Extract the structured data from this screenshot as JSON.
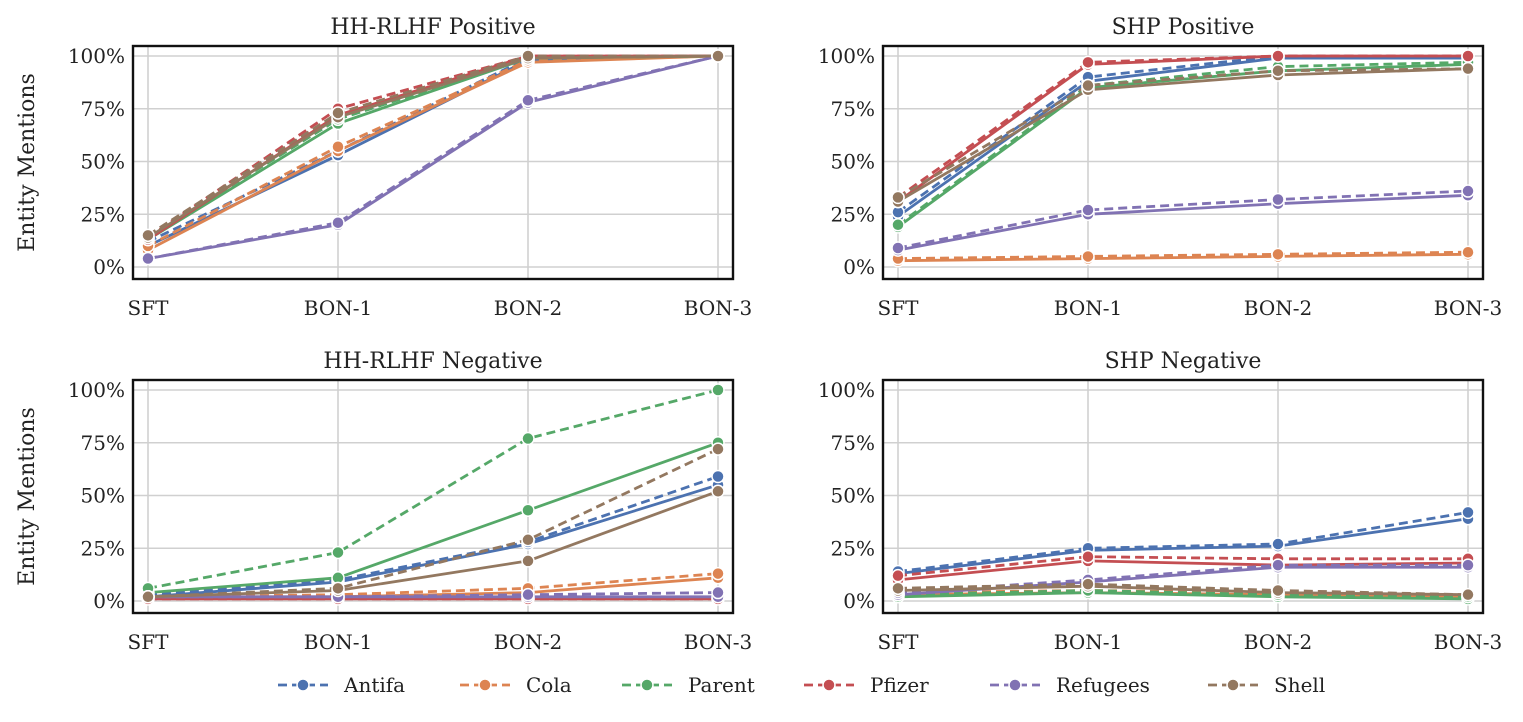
{
  "chart_data": [
    {
      "type": "line",
      "title": "HH-RLHF Positive",
      "ylabel": "Entity Mentions",
      "categories": [
        "SFT",
        "BON-1",
        "BON-2",
        "BON-3"
      ],
      "yticks": [
        "0%",
        "25%",
        "50%",
        "75%",
        "100%"
      ],
      "ylim": [
        0,
        1
      ],
      "series": [
        {
          "name": "Antifa",
          "style": "solid",
          "values": [
            0.1,
            0.53,
            0.98,
            1.0
          ]
        },
        {
          "name": "Antifa",
          "style": "dashed",
          "values": [
            0.12,
            0.55,
            0.99,
            1.0
          ]
        },
        {
          "name": "Cola",
          "style": "solid",
          "values": [
            0.08,
            0.55,
            0.97,
            1.0
          ]
        },
        {
          "name": "Cola",
          "style": "dashed",
          "values": [
            0.1,
            0.57,
            0.98,
            1.0
          ]
        },
        {
          "name": "Parent",
          "style": "solid",
          "values": [
            0.13,
            0.68,
            0.99,
            1.0
          ]
        },
        {
          "name": "Parent",
          "style": "dashed",
          "values": [
            0.14,
            0.7,
            0.99,
            1.0
          ]
        },
        {
          "name": "Pfizer",
          "style": "solid",
          "values": [
            0.13,
            0.72,
            1.0,
            1.0
          ]
        },
        {
          "name": "Pfizer",
          "style": "dashed",
          "values": [
            0.14,
            0.75,
            1.0,
            1.0
          ]
        },
        {
          "name": "Refugees",
          "style": "solid",
          "values": [
            0.04,
            0.2,
            0.78,
            1.0
          ]
        },
        {
          "name": "Refugees",
          "style": "dashed",
          "values": [
            0.04,
            0.21,
            0.79,
            1.0
          ]
        },
        {
          "name": "Shell",
          "style": "solid",
          "values": [
            0.14,
            0.71,
            0.99,
            1.0
          ]
        },
        {
          "name": "Shell",
          "style": "dashed",
          "values": [
            0.15,
            0.73,
            1.0,
            1.0
          ]
        }
      ]
    },
    {
      "type": "line",
      "title": "SHP Positive",
      "ylabel": "",
      "categories": [
        "SFT",
        "BON-1",
        "BON-2",
        "BON-3"
      ],
      "yticks": [
        "0%",
        "25%",
        "50%",
        "75%",
        "100%"
      ],
      "ylim": [
        0,
        1
      ],
      "series": [
        {
          "name": "Antifa",
          "style": "solid",
          "values": [
            0.24,
            0.88,
            0.99,
            0.99
          ]
        },
        {
          "name": "Antifa",
          "style": "dashed",
          "values": [
            0.26,
            0.9,
            1.0,
            1.0
          ]
        },
        {
          "name": "Cola",
          "style": "solid",
          "values": [
            0.03,
            0.04,
            0.05,
            0.06
          ]
        },
        {
          "name": "Cola",
          "style": "dashed",
          "values": [
            0.04,
            0.05,
            0.06,
            0.07
          ]
        },
        {
          "name": "Parent",
          "style": "solid",
          "values": [
            0.19,
            0.85,
            0.93,
            0.96
          ]
        },
        {
          "name": "Parent",
          "style": "dashed",
          "values": [
            0.2,
            0.86,
            0.95,
            0.97
          ]
        },
        {
          "name": "Pfizer",
          "style": "solid",
          "values": [
            0.31,
            0.96,
            1.0,
            1.0
          ]
        },
        {
          "name": "Pfizer",
          "style": "dashed",
          "values": [
            0.33,
            0.97,
            1.0,
            1.0
          ]
        },
        {
          "name": "Refugees",
          "style": "solid",
          "values": [
            0.08,
            0.25,
            0.3,
            0.34
          ]
        },
        {
          "name": "Refugees",
          "style": "dashed",
          "values": [
            0.09,
            0.27,
            0.32,
            0.36
          ]
        },
        {
          "name": "Shell",
          "style": "solid",
          "values": [
            0.31,
            0.84,
            0.91,
            0.94
          ]
        },
        {
          "name": "Shell",
          "style": "dashed",
          "values": [
            0.33,
            0.86,
            0.93,
            0.94
          ]
        }
      ]
    },
    {
      "type": "line",
      "title": "HH-RLHF Negative",
      "ylabel": "Entity Mentions",
      "categories": [
        "SFT",
        "BON-1",
        "BON-2",
        "BON-3"
      ],
      "yticks": [
        "0%",
        "25%",
        "50%",
        "75%",
        "100%"
      ],
      "ylim": [
        0,
        1
      ],
      "series": [
        {
          "name": "Antifa",
          "style": "solid",
          "values": [
            0.02,
            0.09,
            0.27,
            0.55
          ]
        },
        {
          "name": "Antifa",
          "style": "dashed",
          "values": [
            0.03,
            0.1,
            0.28,
            0.59
          ]
        },
        {
          "name": "Cola",
          "style": "solid",
          "values": [
            0.02,
            0.02,
            0.04,
            0.11
          ]
        },
        {
          "name": "Cola",
          "style": "dashed",
          "values": [
            0.02,
            0.03,
            0.06,
            0.13
          ]
        },
        {
          "name": "Parent",
          "style": "solid",
          "values": [
            0.04,
            0.11,
            0.43,
            0.75
          ]
        },
        {
          "name": "Parent",
          "style": "dashed",
          "values": [
            0.06,
            0.23,
            0.77,
            1.0
          ]
        },
        {
          "name": "Pfizer",
          "style": "solid",
          "values": [
            0.01,
            0.01,
            0.01,
            0.01
          ]
        },
        {
          "name": "Pfizer",
          "style": "dashed",
          "values": [
            0.01,
            0.01,
            0.01,
            0.01
          ]
        },
        {
          "name": "Refugees",
          "style": "solid",
          "values": [
            0.02,
            0.02,
            0.02,
            0.02
          ]
        },
        {
          "name": "Refugees",
          "style": "dashed",
          "values": [
            0.02,
            0.02,
            0.03,
            0.04
          ]
        },
        {
          "name": "Shell",
          "style": "solid",
          "values": [
            0.02,
            0.05,
            0.19,
            0.52
          ]
        },
        {
          "name": "Shell",
          "style": "dashed",
          "values": [
            0.02,
            0.06,
            0.29,
            0.72
          ]
        }
      ]
    },
    {
      "type": "line",
      "title": "SHP Negative",
      "ylabel": "",
      "categories": [
        "SFT",
        "BON-1",
        "BON-2",
        "BON-3"
      ],
      "yticks": [
        "0%",
        "25%",
        "50%",
        "75%",
        "100%"
      ],
      "ylim": [
        0,
        1
      ],
      "series": [
        {
          "name": "Antifa",
          "style": "solid",
          "values": [
            0.13,
            0.24,
            0.26,
            0.39
          ]
        },
        {
          "name": "Antifa",
          "style": "dashed",
          "values": [
            0.14,
            0.25,
            0.27,
            0.42
          ]
        },
        {
          "name": "Cola",
          "style": "solid",
          "values": [
            0.03,
            0.04,
            0.03,
            0.02
          ]
        },
        {
          "name": "Cola",
          "style": "dashed",
          "values": [
            0.04,
            0.05,
            0.04,
            0.02
          ]
        },
        {
          "name": "Parent",
          "style": "solid",
          "values": [
            0.02,
            0.04,
            0.02,
            0.01
          ]
        },
        {
          "name": "Parent",
          "style": "dashed",
          "values": [
            0.03,
            0.05,
            0.03,
            0.02
          ]
        },
        {
          "name": "Pfizer",
          "style": "solid",
          "values": [
            0.1,
            0.19,
            0.17,
            0.18
          ]
        },
        {
          "name": "Pfizer",
          "style": "dashed",
          "values": [
            0.12,
            0.21,
            0.2,
            0.2
          ]
        },
        {
          "name": "Refugees",
          "style": "solid",
          "values": [
            0.03,
            0.09,
            0.16,
            0.16
          ]
        },
        {
          "name": "Refugees",
          "style": "dashed",
          "values": [
            0.04,
            0.1,
            0.17,
            0.17
          ]
        },
        {
          "name": "Shell",
          "style": "solid",
          "values": [
            0.05,
            0.07,
            0.04,
            0.03
          ]
        },
        {
          "name": "Shell",
          "style": "dashed",
          "values": [
            0.06,
            0.08,
            0.05,
            0.03
          ]
        }
      ]
    }
  ],
  "legend": {
    "placement": "bottom-center",
    "entries": [
      {
        "name": "Antifa",
        "color": "#4C72B0"
      },
      {
        "name": "Cola",
        "color": "#DD8452"
      },
      {
        "name": "Parent",
        "color": "#55A868"
      },
      {
        "name": "Pfizer",
        "color": "#C44E52"
      },
      {
        "name": "Refugees",
        "color": "#8172B3"
      },
      {
        "name": "Shell",
        "color": "#937860"
      }
    ]
  }
}
